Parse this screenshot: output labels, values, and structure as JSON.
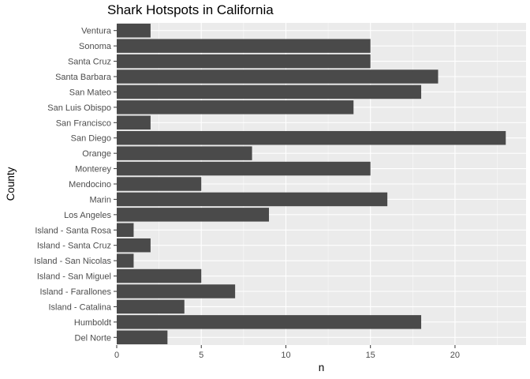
{
  "chart_data": {
    "type": "bar",
    "orientation": "horizontal",
    "title": "Shark Hotspots in California",
    "xlabel": "n",
    "ylabel": "County",
    "xlim": [
      0,
      24.2
    ],
    "xticks": [
      0,
      5,
      10,
      15,
      20
    ],
    "grid": true,
    "legend": "none",
    "colors": {
      "panel_background": "#ebebeb",
      "grid_major": "#ffffff",
      "bar_fill": "#4a4a4a",
      "tick_text": "#4d4d4d",
      "tick_mark": "#333333"
    },
    "categories": [
      "Ventura",
      "Sonoma",
      "Santa Cruz",
      "Santa Barbara",
      "San Mateo",
      "San Luis Obispo",
      "San Francisco",
      "San Diego",
      "Orange",
      "Monterey",
      "Mendocino",
      "Marin",
      "Los Angeles",
      "Island - Santa Rosa",
      "Island - Santa Cruz",
      "Island - San Nicolas",
      "Island - San Miguel",
      "Island - Farallones",
      "Island - Catalina",
      "Humboldt",
      "Del Norte"
    ],
    "values": [
      2,
      15,
      15,
      19,
      18,
      14,
      2,
      23,
      8,
      15,
      5,
      16,
      9,
      1,
      2,
      1,
      5,
      7,
      4,
      18,
      3
    ]
  }
}
